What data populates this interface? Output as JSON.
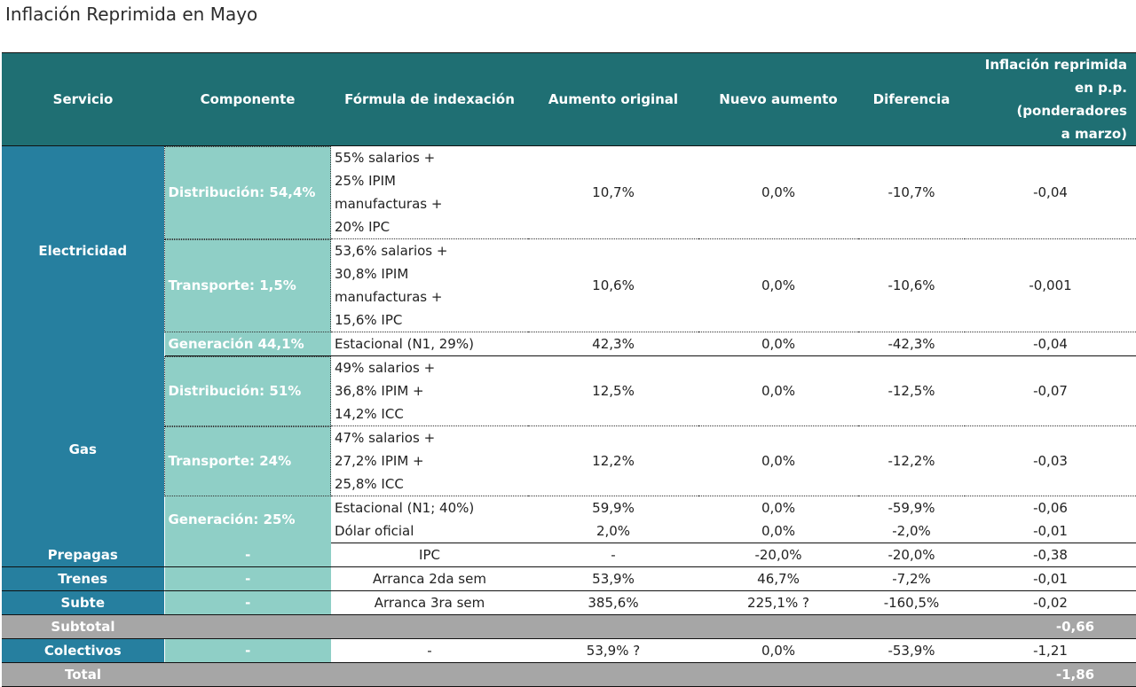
{
  "title": "Inflación Reprimida en Mayo",
  "headers": {
    "servicio": "Servicio",
    "componente": "Componente",
    "formula": "Fórmula de indexación",
    "aumento_original": "Aumento original",
    "nuevo_aumento": "Nuevo aumento",
    "diferencia": "Diferencia",
    "inflacion_l1": "Inflación reprimida",
    "inflacion_l2": "en p.p. (ponderadores",
    "inflacion_l3": "a marzo)"
  },
  "rows": {
    "electricidad": {
      "servicio": "Electricidad",
      "dist": {
        "componente": "Distribución: 54,4%",
        "formula": [
          "55% salarios +",
          "25% IPIM",
          "manufacturas +",
          "20% IPC"
        ],
        "aumento_original": "10,7%",
        "nuevo_aumento": "0,0%",
        "diferencia": "-10,7%",
        "inflacion": "-0,04"
      },
      "trans": {
        "componente": "Transporte: 1,5%",
        "formula": [
          "53,6% salarios +",
          "30,8% IPIM",
          "manufacturas +",
          "15,6% IPC"
        ],
        "aumento_original": "10,6%",
        "nuevo_aumento": "0,0%",
        "diferencia": "-10,6%",
        "inflacion": "-0,001"
      },
      "gen": {
        "componente": "Generación 44,1%",
        "formula": "Estacional (N1, 29%)",
        "aumento_original": "42,3%",
        "nuevo_aumento": "0,0%",
        "diferencia": "-42,3%",
        "inflacion": "-0,04"
      }
    },
    "gas": {
      "servicio": "Gas",
      "dist": {
        "componente": "Distribución: 51%",
        "formula": [
          "49% salarios +",
          "36,8% IPIM +",
          "14,2% ICC"
        ],
        "aumento_original": "12,5%",
        "nuevo_aumento": "0,0%",
        "diferencia": "-12,5%",
        "inflacion": "-0,07"
      },
      "trans": {
        "componente": "Transporte: 24%",
        "formula": [
          "47% salarios +",
          "27,2% IPIM +",
          "25,8% ICC"
        ],
        "aumento_original": "12,2%",
        "nuevo_aumento": "0,0%",
        "diferencia": "-12,2%",
        "inflacion": "-0,03"
      },
      "gen": {
        "componente": "Generación: 25%",
        "a": {
          "formula": "Estacional (N1; 40%)",
          "aumento_original": "59,9%",
          "nuevo_aumento": "0,0%",
          "diferencia": "-59,9%",
          "inflacion": "-0,06"
        },
        "b": {
          "formula": "Dólar oficial",
          "aumento_original": "2,0%",
          "nuevo_aumento": "0,0%",
          "diferencia": "-2,0%",
          "inflacion": "-0,01"
        }
      }
    },
    "prepagas": {
      "servicio": "Prepagas",
      "componente": "-",
      "formula": "IPC",
      "aumento_original": "-",
      "nuevo_aumento": "-20,0%",
      "diferencia": "-20,0%",
      "inflacion": "-0,38"
    },
    "trenes": {
      "servicio": "Trenes",
      "componente": "-",
      "formula": "Arranca 2da sem",
      "aumento_original": "53,9%",
      "nuevo_aumento": "46,7%",
      "diferencia": "-7,2%",
      "inflacion": "-0,01"
    },
    "subte": {
      "servicio": "Subte",
      "componente": "-",
      "formula": "Arranca 3ra sem",
      "aumento_original": "385,6%",
      "nuevo_aumento": "225,1% ?",
      "diferencia": "-160,5%",
      "inflacion": "-0,02"
    },
    "subtotal": {
      "label": "Subtotal",
      "inflacion": "-0,66"
    },
    "colectivos": {
      "servicio": "Colectivos",
      "componente": "-",
      "formula": "-",
      "aumento_original": "53,9% ?",
      "nuevo_aumento": "0,0%",
      "diferencia": "-53,9%",
      "inflacion": "-1,21"
    },
    "total": {
      "label": "Total",
      "inflacion": "-1,86"
    }
  }
}
